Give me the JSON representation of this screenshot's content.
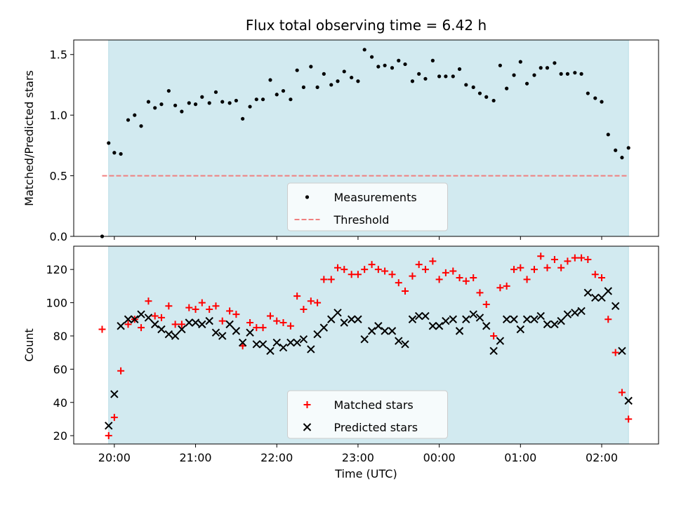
{
  "chart_data": [
    {
      "type": "scatter",
      "title": "Flux total observing time = 6.42 h",
      "ylabel": "Matched/Predicted stars",
      "xlabel": "",
      "xlim_hours": [
        19.5,
        26.7
      ],
      "ylim": [
        0,
        1.62
      ],
      "y_ticks": [
        "0.0",
        "0.5",
        "1.0",
        "1.5"
      ],
      "shaded_span_hours": [
        19.93,
        26.33
      ],
      "shade_color": "#d2eaf0",
      "legend": {
        "position": "lower center",
        "entries": [
          "Measurements",
          "Threshold"
        ]
      },
      "series": [
        {
          "name": "Measurements",
          "marker": "dot",
          "color": "#000000",
          "x_hours": [
            19.85,
            19.93,
            20.0,
            20.08,
            20.17,
            20.25,
            20.33,
            20.42,
            20.5,
            20.58,
            20.67,
            20.75,
            20.83,
            20.92,
            21.0,
            21.08,
            21.17,
            21.25,
            21.33,
            21.42,
            21.5,
            21.58,
            21.67,
            21.75,
            21.83,
            21.92,
            22.0,
            22.08,
            22.17,
            22.25,
            22.33,
            22.42,
            22.5,
            22.58,
            22.67,
            22.75,
            22.83,
            22.92,
            23.0,
            23.08,
            23.17,
            23.25,
            23.33,
            23.42,
            23.5,
            23.58,
            23.67,
            23.75,
            23.83,
            23.92,
            24.0,
            24.08,
            24.17,
            24.25,
            24.33,
            24.42,
            24.5,
            24.58,
            24.67,
            24.75,
            24.83,
            24.92,
            25.0,
            25.08,
            25.17,
            25.25,
            25.33,
            25.42,
            25.5,
            25.58,
            25.67,
            25.75,
            25.83,
            25.92,
            26.0,
            26.08,
            26.17,
            26.25,
            26.33
          ],
          "y": [
            0.0,
            0.77,
            0.69,
            0.68,
            0.96,
            1.0,
            0.91,
            1.11,
            1.06,
            1.09,
            1.2,
            1.08,
            1.03,
            1.1,
            1.09,
            1.15,
            1.1,
            1.19,
            1.11,
            1.1,
            1.12,
            0.97,
            1.07,
            1.13,
            1.13,
            1.29,
            1.17,
            1.2,
            1.13,
            1.37,
            1.23,
            1.4,
            1.23,
            1.34,
            1.25,
            1.28,
            1.36,
            1.31,
            1.28,
            1.54,
            1.48,
            1.4,
            1.41,
            1.39,
            1.45,
            1.42,
            1.28,
            1.34,
            1.3,
            1.45,
            1.32,
            1.32,
            1.32,
            1.38,
            1.25,
            1.23,
            1.18,
            1.15,
            1.12,
            1.41,
            1.22,
            1.33,
            1.44,
            1.26,
            1.33,
            1.39,
            1.39,
            1.43,
            1.34,
            1.34,
            1.35,
            1.34,
            1.18,
            1.14,
            1.11,
            0.84,
            0.71,
            0.65,
            0.73
          ]
        },
        {
          "name": "Threshold",
          "style": "dashed",
          "color": "#f08080",
          "x_hours": [
            19.85,
            26.33
          ],
          "y": [
            0.5,
            0.5
          ]
        }
      ]
    },
    {
      "type": "scatter",
      "title": "",
      "ylabel": "Count",
      "xlabel": "Time (UTC)",
      "xlim_hours": [
        19.5,
        26.7
      ],
      "ylim": [
        15,
        134
      ],
      "y_ticks": [
        "20",
        "40",
        "60",
        "80",
        "100",
        "120"
      ],
      "x_ticks": [
        {
          "hour": 20,
          "label": "20:00"
        },
        {
          "hour": 21,
          "label": "21:00"
        },
        {
          "hour": 22,
          "label": "22:00"
        },
        {
          "hour": 23,
          "label": "23:00"
        },
        {
          "hour": 24,
          "label": "00:00"
        },
        {
          "hour": 25,
          "label": "01:00"
        },
        {
          "hour": 26,
          "label": "02:00"
        }
      ],
      "shaded_span_hours": [
        19.93,
        26.33
      ],
      "shade_color": "#d2eaf0",
      "legend": {
        "position": "lower center",
        "entries": [
          "Matched stars",
          "Predicted stars"
        ]
      },
      "series": [
        {
          "name": "Matched stars",
          "marker": "plus",
          "color": "#ff0000",
          "x_hours": [
            19.85,
            19.93,
            20.0,
            20.08,
            20.17,
            20.25,
            20.33,
            20.42,
            20.5,
            20.58,
            20.67,
            20.75,
            20.83,
            20.92,
            21.0,
            21.08,
            21.17,
            21.25,
            21.33,
            21.42,
            21.5,
            21.58,
            21.67,
            21.75,
            21.83,
            21.92,
            22.0,
            22.08,
            22.17,
            22.25,
            22.33,
            22.42,
            22.5,
            22.58,
            22.67,
            22.75,
            22.83,
            22.92,
            23.0,
            23.08,
            23.17,
            23.25,
            23.33,
            23.42,
            23.5,
            23.58,
            23.67,
            23.75,
            23.83,
            23.92,
            24.0,
            24.08,
            24.17,
            24.25,
            24.33,
            24.42,
            24.5,
            24.58,
            24.67,
            24.75,
            24.83,
            24.92,
            25.0,
            25.08,
            25.17,
            25.25,
            25.33,
            25.42,
            25.5,
            25.58,
            25.67,
            25.75,
            25.83,
            25.92,
            26.0,
            26.08,
            26.17,
            26.25,
            26.33
          ],
          "y": [
            84,
            20,
            31,
            59,
            87,
            90,
            85,
            101,
            92,
            91,
            98,
            87,
            87,
            97,
            96,
            100,
            96,
            98,
            89,
            95,
            93,
            74,
            88,
            85,
            85,
            92,
            89,
            88,
            86,
            104,
            96,
            101,
            100,
            114,
            114,
            121,
            120,
            117,
            117,
            120,
            123,
            120,
            119,
            117,
            112,
            107,
            116,
            123,
            120,
            125,
            114,
            118,
            119,
            115,
            113,
            115,
            106,
            99,
            80,
            109,
            110,
            120,
            121,
            114,
            120,
            128,
            121,
            126,
            121,
            125,
            127,
            127,
            126,
            117,
            115,
            90,
            70,
            46,
            30
          ]
        },
        {
          "name": "Predicted stars",
          "marker": "x",
          "color": "#000000",
          "x_hours": [
            19.93,
            20.0,
            20.08,
            20.17,
            20.25,
            20.33,
            20.42,
            20.5,
            20.58,
            20.67,
            20.75,
            20.83,
            20.92,
            21.0,
            21.08,
            21.17,
            21.25,
            21.33,
            21.42,
            21.5,
            21.58,
            21.67,
            21.75,
            21.83,
            21.92,
            22.0,
            22.08,
            22.17,
            22.25,
            22.33,
            22.42,
            22.5,
            22.58,
            22.67,
            22.75,
            22.83,
            22.92,
            23.0,
            23.08,
            23.17,
            23.25,
            23.33,
            23.42,
            23.5,
            23.58,
            23.67,
            23.75,
            23.83,
            23.92,
            24.0,
            24.08,
            24.17,
            24.25,
            24.33,
            24.42,
            24.5,
            24.58,
            24.67,
            24.75,
            24.83,
            24.92,
            25.0,
            25.08,
            25.17,
            25.25,
            25.33,
            25.42,
            25.5,
            25.58,
            25.67,
            25.75,
            25.83,
            25.92,
            26.0,
            26.08,
            26.17,
            26.25,
            26.33
          ],
          "y": [
            26,
            45,
            86,
            90,
            90,
            93,
            91,
            87,
            84,
            81,
            80,
            84,
            88,
            88,
            87,
            89,
            82,
            80,
            87,
            83,
            76,
            82,
            75,
            75,
            71,
            76,
            73,
            76,
            76,
            78,
            72,
            81,
            85,
            90,
            94,
            88,
            90,
            90,
            78,
            83,
            86,
            83,
            83,
            77,
            75,
            90,
            92,
            92,
            86,
            86,
            89,
            90,
            83,
            90,
            93,
            91,
            86,
            71,
            77,
            90,
            90,
            84,
            90,
            90,
            92,
            87,
            87,
            89,
            93,
            94,
            95,
            106,
            103,
            103,
            107,
            98,
            71,
            41
          ]
        }
      ]
    }
  ]
}
